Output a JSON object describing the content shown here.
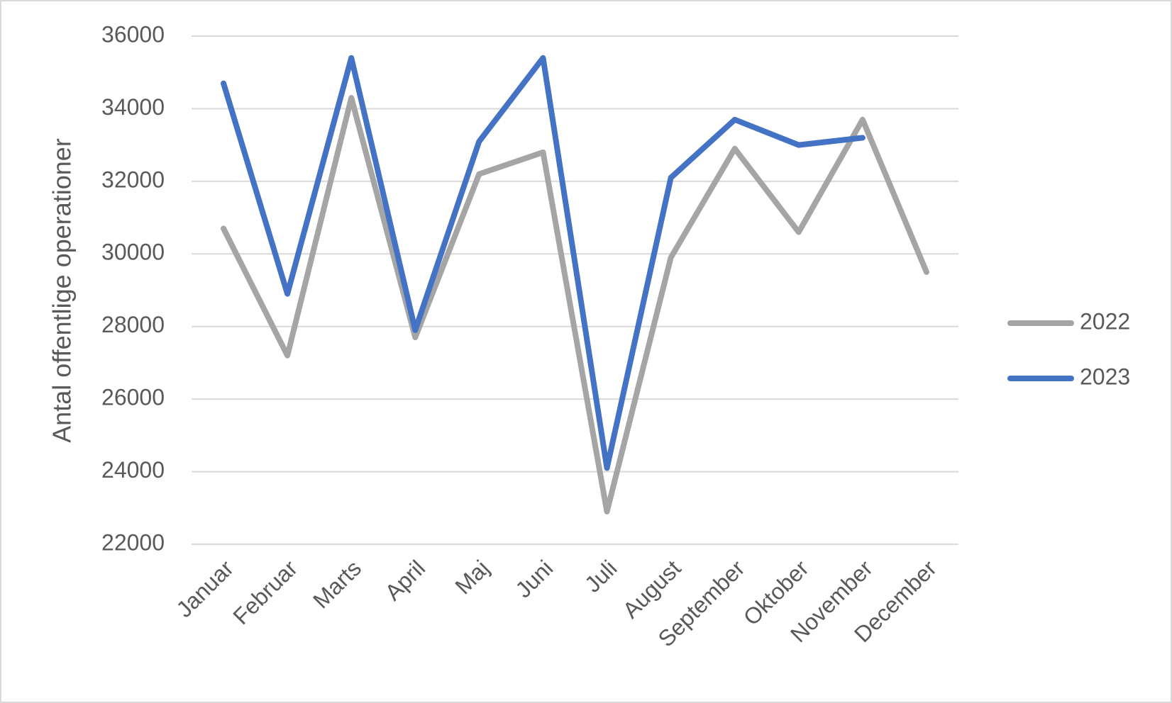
{
  "chart_data": {
    "type": "line",
    "ylabel": "Antal offentlige operationer",
    "categories": [
      "Januar",
      "Februar",
      "Marts",
      "April",
      "Maj",
      "Juni",
      "Juli",
      "August",
      "September",
      "Oktober",
      "November",
      "December"
    ],
    "series": [
      {
        "name": "2022",
        "color": "#a5a5a5",
        "values": [
          30700,
          27200,
          34300,
          27700,
          32200,
          32800,
          22900,
          29900,
          32900,
          30600,
          33700,
          29500
        ]
      },
      {
        "name": "2023",
        "color": "#4472c4",
        "values": [
          34700,
          28900,
          35400,
          27900,
          33100,
          35400,
          24100,
          32100,
          33700,
          33000,
          33200,
          null
        ]
      }
    ],
    "ylim": [
      22000,
      36000
    ],
    "yticks": [
      22000,
      24000,
      26000,
      28000,
      30000,
      32000,
      34000,
      36000
    ],
    "grid": true,
    "legend": "right"
  }
}
